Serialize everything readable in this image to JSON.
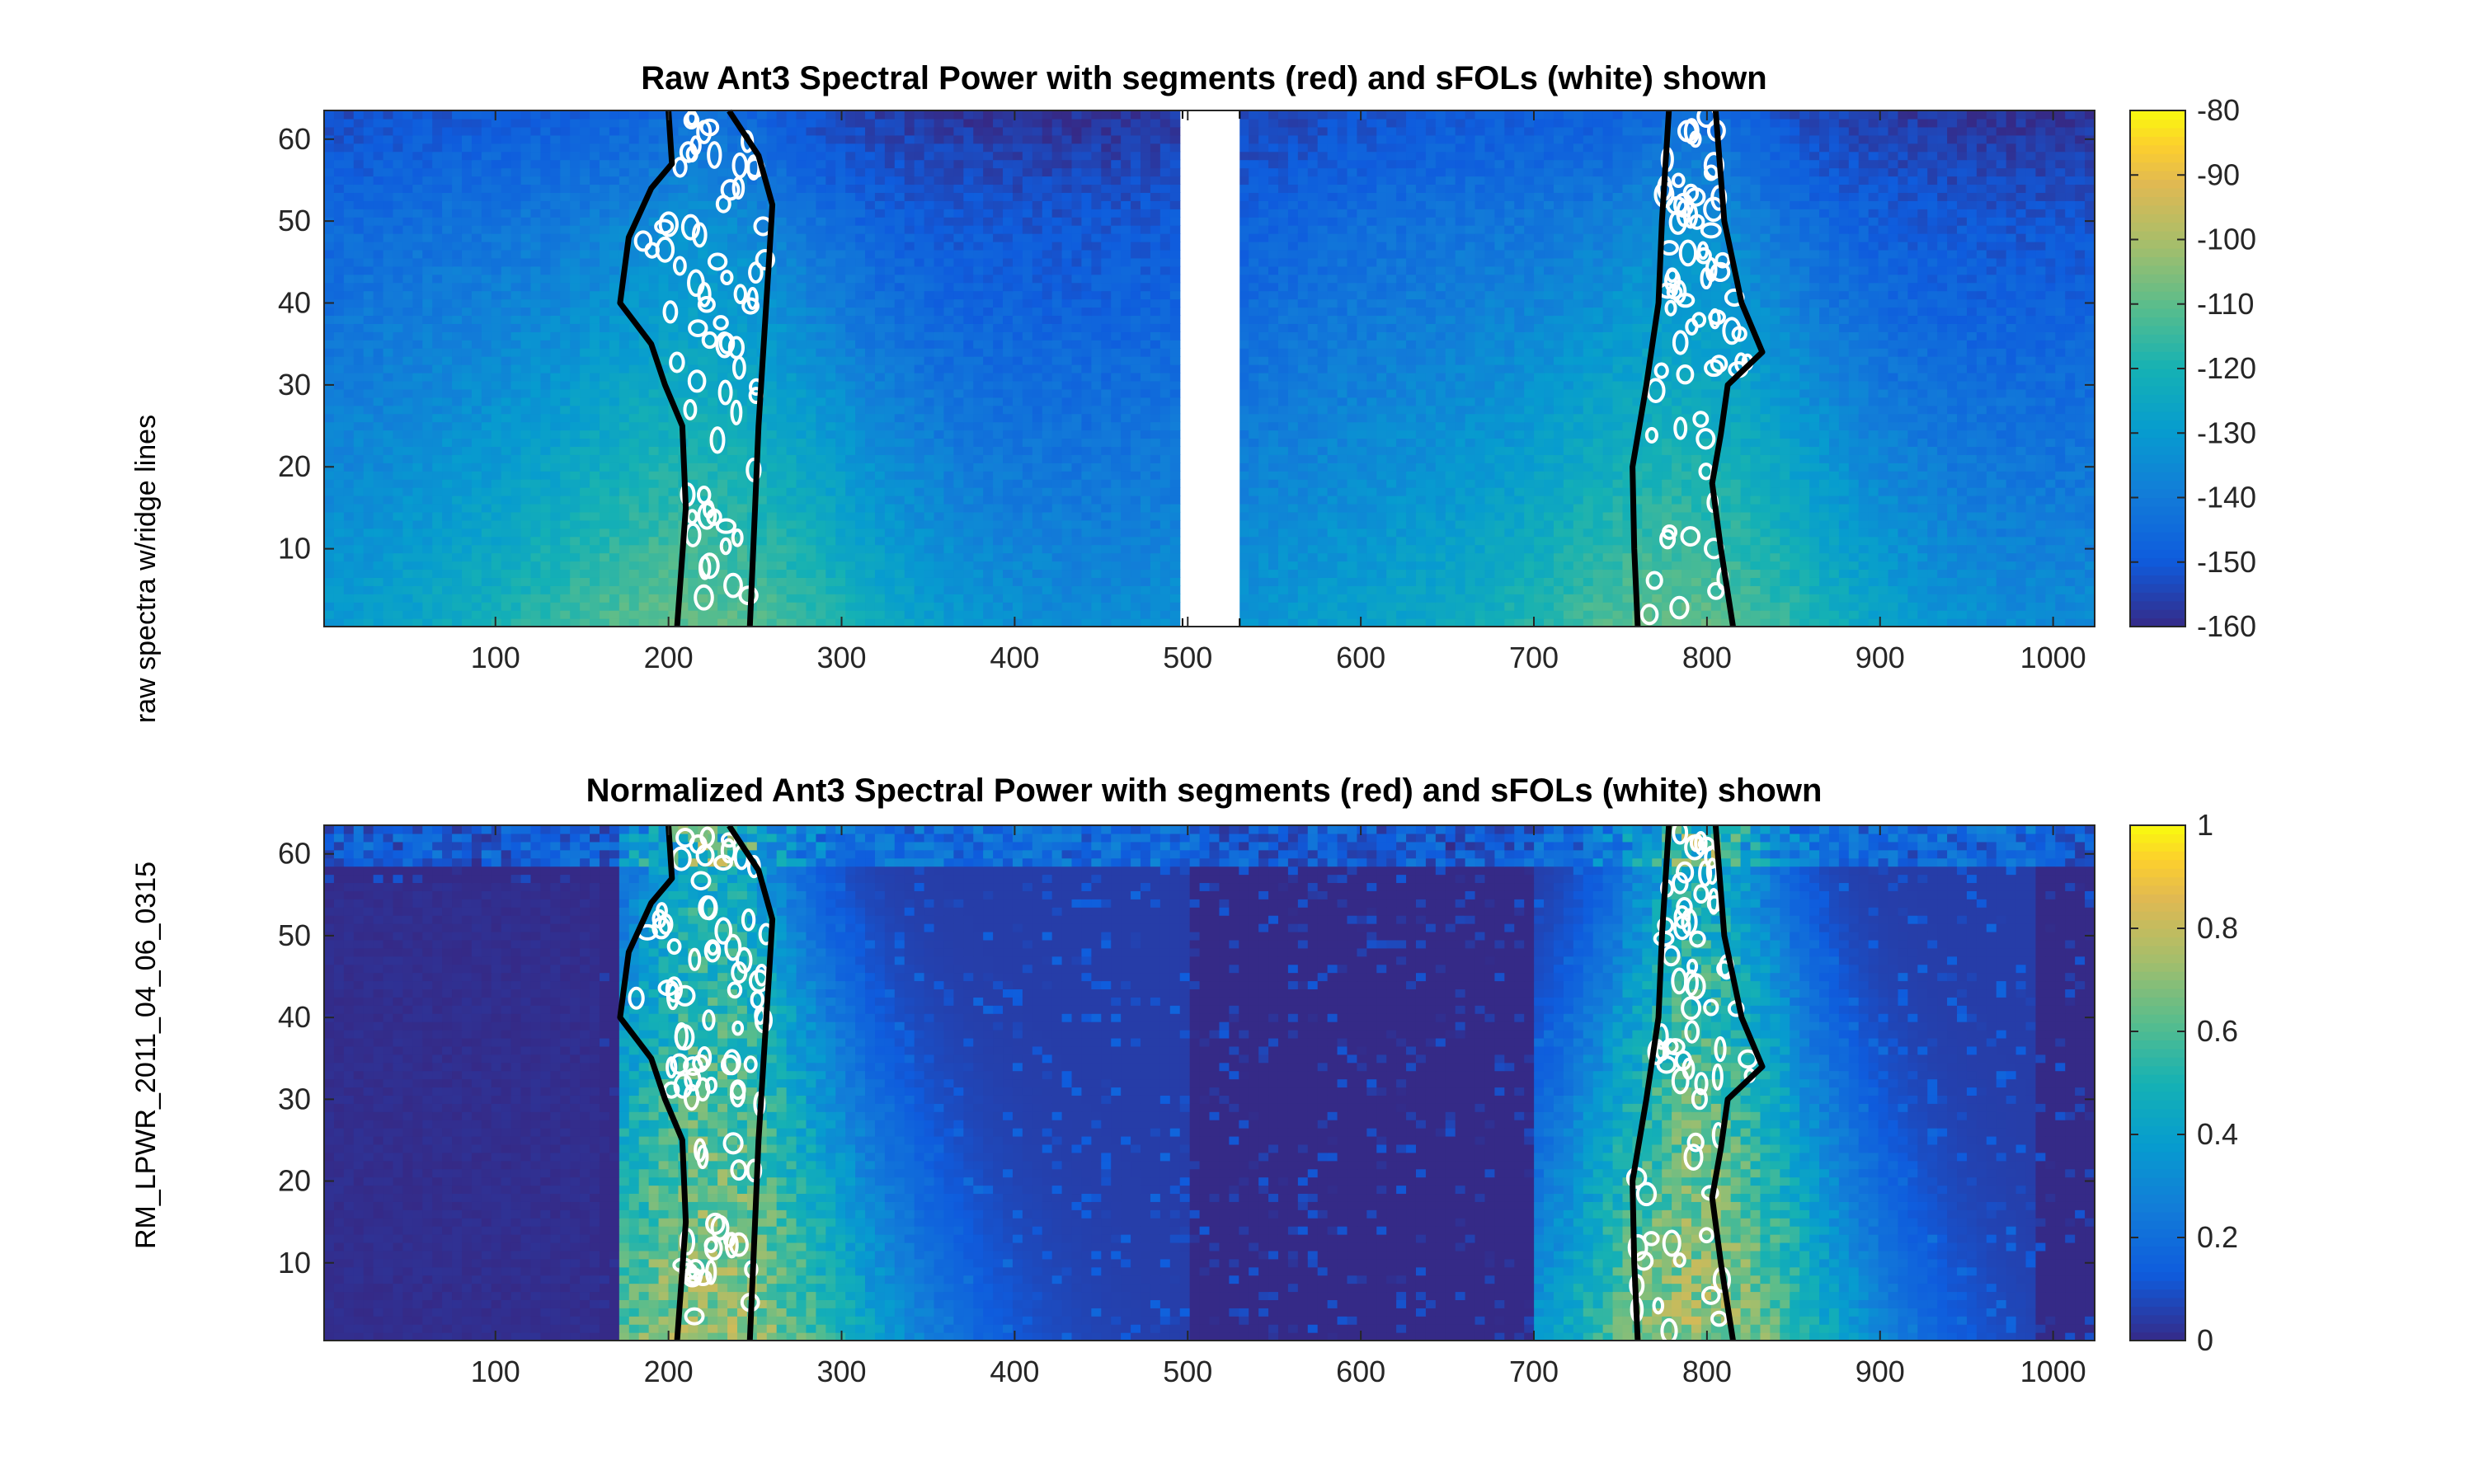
{
  "figure": {
    "ylabel_top": "raw spectra w/ridge lines",
    "ylabel_bottom": "RM_LPWR_2011_04_06_0315"
  },
  "chart_data": [
    {
      "type": "heatmap",
      "title": "Raw Ant3 Spectral Power with segments (red) and sFOLs (white) shown",
      "xlabel": "",
      "ylabel": "raw spectra w/ridge lines",
      "xlim": [
        1,
        1024
      ],
      "ylim": [
        1,
        63
      ],
      "xticks": [
        100,
        200,
        300,
        400,
        500,
        600,
        700,
        800,
        900,
        1000
      ],
      "yticks": [
        10,
        20,
        30,
        40,
        50,
        60
      ],
      "colormap": "parula",
      "color_range": [
        -160,
        -80
      ],
      "colorbar_ticks": [
        -80,
        -90,
        -100,
        -110,
        -120,
        -130,
        -140,
        -150,
        -160
      ],
      "gap_x": [
        497,
        530
      ],
      "segments": [
        {
          "left": [
            [
              205,
              1
            ],
            [
              210,
              15
            ],
            [
              208,
              25
            ],
            [
              198,
              30
            ],
            [
              190,
              35
            ],
            [
              172,
              40
            ],
            [
              177,
              48
            ],
            [
              190,
              54
            ],
            [
              202,
              57
            ],
            [
              200,
              63
            ]
          ],
          "right": [
            [
              247,
              1
            ],
            [
              250,
              15
            ],
            [
              252,
              25
            ],
            [
              255,
              35
            ],
            [
              258,
              45
            ],
            [
              260,
              52
            ],
            [
              252,
              58
            ],
            [
              235,
              63
            ]
          ]
        },
        {
          "left": [
            [
              760,
              1
            ],
            [
              758,
              10
            ],
            [
              757,
              20
            ],
            [
              765,
              30
            ],
            [
              772,
              40
            ],
            [
              774,
              50
            ],
            [
              778,
              63
            ]
          ],
          "right": [
            [
              815,
              1
            ],
            [
              808,
              10
            ],
            [
              803,
              18
            ],
            [
              808,
              24
            ],
            [
              812,
              30
            ],
            [
              832,
              34
            ],
            [
              820,
              40
            ],
            [
              810,
              50
            ],
            [
              805,
              63
            ]
          ]
        }
      ],
      "grid": false,
      "legend": "colorbar-right"
    },
    {
      "type": "heatmap",
      "title": "Normalized Ant3 Spectral Power with segments (red) and sFOLs (white) shown",
      "xlabel": "",
      "ylabel": "RM_LPWR_2011_04_06_0315",
      "xlim": [
        1,
        1024
      ],
      "ylim": [
        1,
        63
      ],
      "xticks": [
        100,
        200,
        300,
        400,
        500,
        600,
        700,
        800,
        900,
        1000
      ],
      "yticks": [
        10,
        20,
        30,
        40,
        50,
        60
      ],
      "colormap": "parula",
      "color_range": [
        0,
        1
      ],
      "colorbar_ticks": [
        1,
        0.8,
        0.6,
        0.4,
        0.2,
        0
      ],
      "segments": [
        {
          "left": [
            [
              205,
              1
            ],
            [
              210,
              15
            ],
            [
              208,
              25
            ],
            [
              198,
              30
            ],
            [
              190,
              35
            ],
            [
              172,
              40
            ],
            [
              177,
              48
            ],
            [
              190,
              54
            ],
            [
              202,
              57
            ],
            [
              200,
              63
            ]
          ],
          "right": [
            [
              247,
              1
            ],
            [
              250,
              15
            ],
            [
              252,
              25
            ],
            [
              255,
              35
            ],
            [
              258,
              45
            ],
            [
              260,
              52
            ],
            [
              252,
              58
            ],
            [
              235,
              63
            ]
          ]
        },
        {
          "left": [
            [
              760,
              1
            ],
            [
              758,
              10
            ],
            [
              757,
              20
            ],
            [
              765,
              30
            ],
            [
              772,
              40
            ],
            [
              774,
              50
            ],
            [
              778,
              63
            ]
          ],
          "right": [
            [
              815,
              1
            ],
            [
              808,
              10
            ],
            [
              803,
              18
            ],
            [
              808,
              24
            ],
            [
              812,
              30
            ],
            [
              832,
              34
            ],
            [
              820,
              40
            ],
            [
              810,
              50
            ],
            [
              805,
              63
            ]
          ]
        }
      ],
      "grid": false,
      "legend": "colorbar-right"
    }
  ]
}
